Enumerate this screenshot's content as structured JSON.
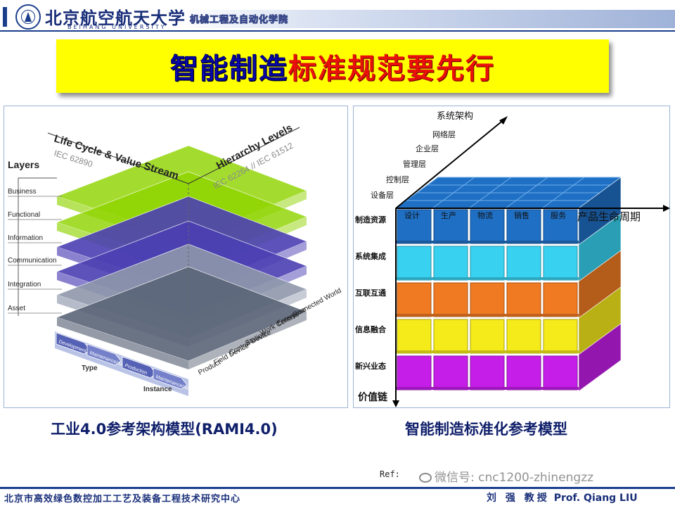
{
  "header": {
    "university_cn": "北京航空航天大学",
    "university_en": "BEIHANG UNIVERSITY",
    "school": "机械工程及自动化学院"
  },
  "title": {
    "part1": "智能制造",
    "part2": "标准规范要先行"
  },
  "rami": {
    "life_cycle_title": "Life Cycle & Value Stream",
    "life_cycle_std": "IEC 62890",
    "hierarchy_title": "Hierarchy Levels",
    "hierarchy_std": "IEC 62264 // IEC 61512",
    "layers_title": "Layers",
    "layers": [
      "Business",
      "Functional",
      "Information",
      "Communication",
      "Integration",
      "Asset"
    ],
    "hierarchy": [
      "Connected World",
      "Enterprise",
      "Work Centers",
      "Station",
      "Control Device",
      "Field Device",
      "Product"
    ],
    "type_label": "Type",
    "instance_label": "Instance",
    "stream": [
      "Development",
      "Maintenance/ usage",
      "Production",
      "Maintenance/ usage"
    ],
    "colors": {
      "green": "#8fd400",
      "blue": "#4b3fb3",
      "gray": "#8e97ab"
    }
  },
  "caption_left": "工业4.0参考架构模型(RAMI4.0)",
  "cube": {
    "axis_system": "系统架构",
    "axis_lifecycle": "产品生命周期",
    "axis_value": "价值链",
    "system_levels": [
      "网络层",
      "企业层",
      "管理层",
      "控制层",
      "设备层"
    ],
    "lifecycle": [
      "设计",
      "生产",
      "物流",
      "销售",
      "服务"
    ],
    "value_layers": [
      "制造资源",
      "系统集成",
      "互联互通",
      "信息融合",
      "新兴业态"
    ],
    "colors": {
      "top": "#1f6fc4",
      "layer1": "#1f6fc4",
      "layer2": "#38d2f0",
      "layer3": "#f07a22",
      "layer4": "#f5ea1a",
      "layer5": "#c41ee8"
    }
  },
  "caption_right": "智能制造标准化参考模型",
  "ref_label": "Ref:",
  "watermark": "微信号: cnc1200-zhinengzz",
  "footer": {
    "center": "北京市高效绿色数控加工工艺及装备工程技术研究中心",
    "professor_cn": "刘 强 教授",
    "professor_en": "Prof. Qiang LIU"
  }
}
